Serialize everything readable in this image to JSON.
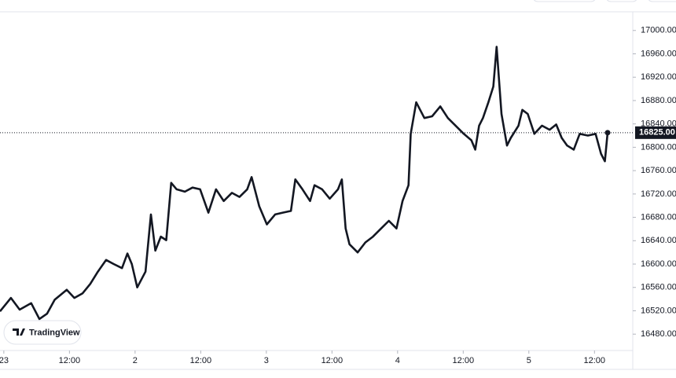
{
  "chart_data": {
    "type": "line",
    "x": [
      -0.7,
      1.3,
      2.9,
      5.0,
      6.5,
      7.9,
      9.3,
      11.5,
      12.9,
      14.4,
      15.8,
      17.2,
      18.7,
      20.1,
      21.6,
      22.6,
      23.4,
      24.4,
      25.9,
      26.9,
      27.7,
      28.7,
      29.7,
      30.6,
      31.6,
      33.1,
      34.5,
      35.9,
      37.4,
      38.8,
      40.2,
      41.7,
      43.1,
      44.5,
      45.3,
      46.7,
      48.1,
      49.6,
      51.0,
      52.5,
      53.3,
      54.6,
      56.0,
      56.8,
      58.2,
      59.6,
      61.1,
      61.8,
      62.5,
      63.2,
      64.7,
      66.1,
      67.5,
      69.0,
      70.4,
      71.8,
      72.9,
      74.0,
      74.4,
      75.4,
      76.9,
      78.3,
      79.8,
      81.2,
      82.6,
      84.1,
      85.5,
      86.2,
      86.9,
      87.6,
      88.6,
      89.5,
      90.1,
      91.0,
      92.0,
      92.7,
      94.1,
      94.8,
      95.8,
      97.0,
      98.4,
      99.8,
      101.0,
      102.0,
      103.0,
      104.2,
      105.3,
      106.8,
      108.2,
      109.2,
      109.9,
      110.4
    ],
    "values": [
      16519,
      16542,
      16522,
      16533,
      16506,
      16515,
      16539,
      16556,
      16542,
      16550,
      16566,
      16587,
      16607,
      16600,
      16593,
      16618,
      16600,
      16560,
      16587,
      16685,
      16623,
      16647,
      16641,
      16739,
      16728,
      16724,
      16731,
      16728,
      16688,
      16728,
      16708,
      16722,
      16715,
      16728,
      16749,
      16699,
      16668,
      16685,
      16688,
      16691,
      16745,
      16728,
      16708,
      16735,
      16728,
      16712,
      16728,
      16745,
      16661,
      16634,
      16620,
      16637,
      16647,
      16661,
      16674,
      16661,
      16708,
      16735,
      16823,
      16877,
      16850,
      16853,
      16870,
      16850,
      16837,
      16823,
      16812,
      16796,
      16837,
      16850,
      16877,
      16904,
      16972,
      16857,
      16803,
      16816,
      16837,
      16864,
      16857,
      16823,
      16837,
      16830,
      16839,
      16816,
      16803,
      16796,
      16823,
      16820,
      16823,
      16789,
      16776,
      16825
    ],
    "color": "#131722",
    "xlim": [
      -0.7,
      115
    ],
    "ylim": [
      16452,
      17032
    ],
    "xticks": [
      {
        "value": 0,
        "label": "23"
      },
      {
        "value": 12,
        "label": "12:00"
      },
      {
        "value": 24,
        "label": "2"
      },
      {
        "value": 36,
        "label": "12:00"
      },
      {
        "value": 48,
        "label": "3"
      },
      {
        "value": 60,
        "label": "12:00"
      },
      {
        "value": 72,
        "label": "4"
      },
      {
        "value": 84,
        "label": "12:00"
      },
      {
        "value": 96,
        "label": "5"
      },
      {
        "value": 108,
        "label": "12:00"
      }
    ],
    "yticks": [
      {
        "value": 16480,
        "label": "16480.00"
      },
      {
        "value": 16520,
        "label": "16520.00"
      },
      {
        "value": 16560,
        "label": "16560.00"
      },
      {
        "value": 16600,
        "label": "16600.00"
      },
      {
        "value": 16640,
        "label": "16640.00"
      },
      {
        "value": 16680,
        "label": "16680.00"
      },
      {
        "value": 16720,
        "label": "16720.00"
      },
      {
        "value": 16760,
        "label": "16760.00"
      },
      {
        "value": 16800,
        "label": "16800.00"
      },
      {
        "value": 16840,
        "label": "16840.00"
      },
      {
        "value": 16880,
        "label": "16880.00"
      },
      {
        "value": 16920,
        "label": "16920.00"
      },
      {
        "value": 16960,
        "label": "16960.00"
      },
      {
        "value": 17000,
        "label": "17000.00"
      }
    ],
    "last_value": {
      "value": 16825,
      "label": "16825.00"
    },
    "watermark": "TradingView"
  }
}
